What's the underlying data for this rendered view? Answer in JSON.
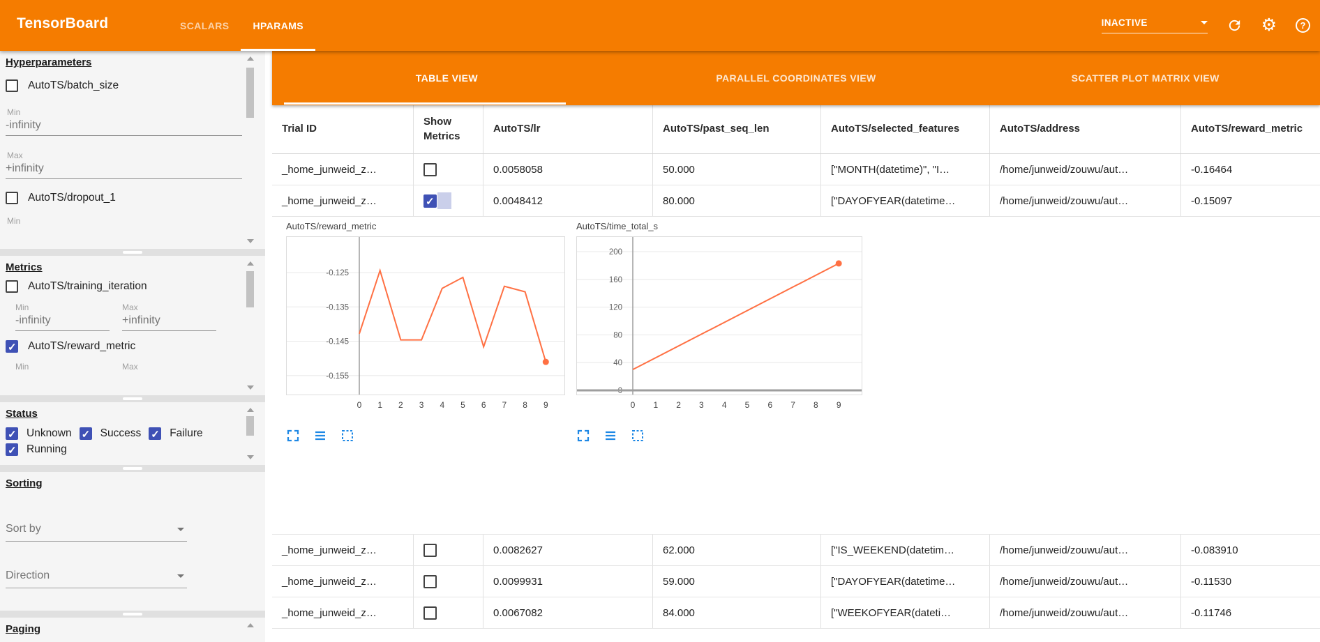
{
  "colors": {
    "appbar_orange": "#f57c00",
    "checkbox_indigo": "#3f51b5",
    "chart_line_orange": "#ff7043",
    "chart_icon_blue": "#1e88e5"
  },
  "header": {
    "title": "TensorBoard",
    "nav": [
      {
        "label": "SCALARS",
        "active": false
      },
      {
        "label": "HPARAMS",
        "active": true
      }
    ],
    "run_status": "INACTIVE"
  },
  "sidebar": {
    "hyperparameters": {
      "title": "Hyperparameters",
      "items": [
        {
          "label": "AutoTS/batch_size",
          "checked": false,
          "min_label": "Min",
          "min_value": "-infinity",
          "max_label": "Max",
          "max_value": "+infinity"
        },
        {
          "label": "AutoTS/dropout_1",
          "checked": false,
          "min_label": "Min"
        }
      ]
    },
    "metrics": {
      "title": "Metrics",
      "items": [
        {
          "label": "AutoTS/training_iteration",
          "checked": false,
          "min_label": "Min",
          "min_value": "-infinity",
          "max_label": "Max",
          "max_value": "+infinity"
        },
        {
          "label": "AutoTS/reward_metric",
          "checked": true,
          "min_label": "Min",
          "max_label": "Max"
        }
      ]
    },
    "status": {
      "title": "Status",
      "options": [
        {
          "label": "Unknown",
          "checked": true
        },
        {
          "label": "Success",
          "checked": true
        },
        {
          "label": "Failure",
          "checked": true
        },
        {
          "label": "Running",
          "checked": true
        }
      ]
    },
    "sorting": {
      "title": "Sorting",
      "sort_by_placeholder": "Sort by",
      "direction_placeholder": "Direction"
    },
    "paging": {
      "title": "Paging"
    }
  },
  "main": {
    "tabs": [
      {
        "label": "TABLE VIEW",
        "active": true
      },
      {
        "label": "PARALLEL COORDINATES VIEW",
        "active": false
      },
      {
        "label": "SCATTER PLOT MATRIX VIEW",
        "active": false
      }
    ],
    "table": {
      "columns": [
        "Trial ID",
        "Show Metrics",
        "AutoTS/lr",
        "AutoTS/past_seq_len",
        "AutoTS/selected_features",
        "AutoTS/address",
        "AutoTS/reward_metric"
      ],
      "rows_top": [
        {
          "trial_id": "_home_junweid_z…",
          "show_metrics": false,
          "lr": "0.0058058",
          "past_seq_len": "50.000",
          "selected_features": "[\"MONTH(datetime)\", \"I…",
          "address": "/home/junweid/zouwu/aut…",
          "reward_metric": "-0.16464"
        },
        {
          "trial_id": "_home_junweid_z…",
          "show_metrics": true,
          "lr": "0.0048412",
          "past_seq_len": "80.000",
          "selected_features": "[\"DAYOFYEAR(datetime…",
          "address": "/home/junweid/zouwu/aut…",
          "reward_metric": "-0.15097"
        }
      ],
      "rows_bottom": [
        {
          "trial_id": "_home_junweid_z…",
          "show_metrics": false,
          "lr": "0.0082627",
          "past_seq_len": "62.000",
          "selected_features": "[\"IS_WEEKEND(datetim…",
          "address": "/home/junweid/zouwu/aut…",
          "reward_metric": "-0.083910"
        },
        {
          "trial_id": "_home_junweid_z…",
          "show_metrics": false,
          "lr": "0.0099931",
          "past_seq_len": "59.000",
          "selected_features": "[\"DAYOFYEAR(datetime…",
          "address": "/home/junweid/zouwu/aut…",
          "reward_metric": "-0.11530"
        },
        {
          "trial_id": "_home_junweid_z…",
          "show_metrics": false,
          "lr": "0.0067082",
          "past_seq_len": "84.000",
          "selected_features": "[\"WEEKOFYEAR(dateti…",
          "address": "/home/junweid/zouwu/aut…",
          "reward_metric": "-0.11746"
        }
      ]
    },
    "chart_icon_names": [
      "fullscreen-icon",
      "rows-icon",
      "dashed-box-icon"
    ]
  },
  "chart_data": [
    {
      "type": "line",
      "title": "AutoTS/reward_metric",
      "x": [
        0,
        1,
        2,
        3,
        4,
        5,
        6,
        7,
        8,
        9
      ],
      "values": [
        -0.1428,
        -0.1244,
        -0.1446,
        -0.1446,
        -0.1296,
        -0.1264,
        -0.1466,
        -0.129,
        -0.1306,
        -0.151
      ],
      "x_ticks": [
        0,
        1,
        2,
        3,
        4,
        5,
        6,
        7,
        8,
        9
      ],
      "y_ticks": [
        -0.125,
        -0.135,
        -0.145,
        -0.155
      ],
      "ylim": [
        -0.1605,
        -0.1145
      ],
      "grid": true,
      "zero_axis": false,
      "end_dot": true,
      "line_color": "#ff7043"
    },
    {
      "type": "line",
      "title": "AutoTS/time_total_s",
      "x": [
        0,
        9
      ],
      "values": [
        30,
        183
      ],
      "x_ticks": [
        0,
        1,
        2,
        3,
        4,
        5,
        6,
        7,
        8,
        9
      ],
      "y_ticks": [
        200,
        160,
        120,
        80,
        40,
        0
      ],
      "ylim": [
        -7,
        222
      ],
      "grid": true,
      "zero_axis": true,
      "end_dot": true,
      "line_color": "#ff7043"
    }
  ]
}
